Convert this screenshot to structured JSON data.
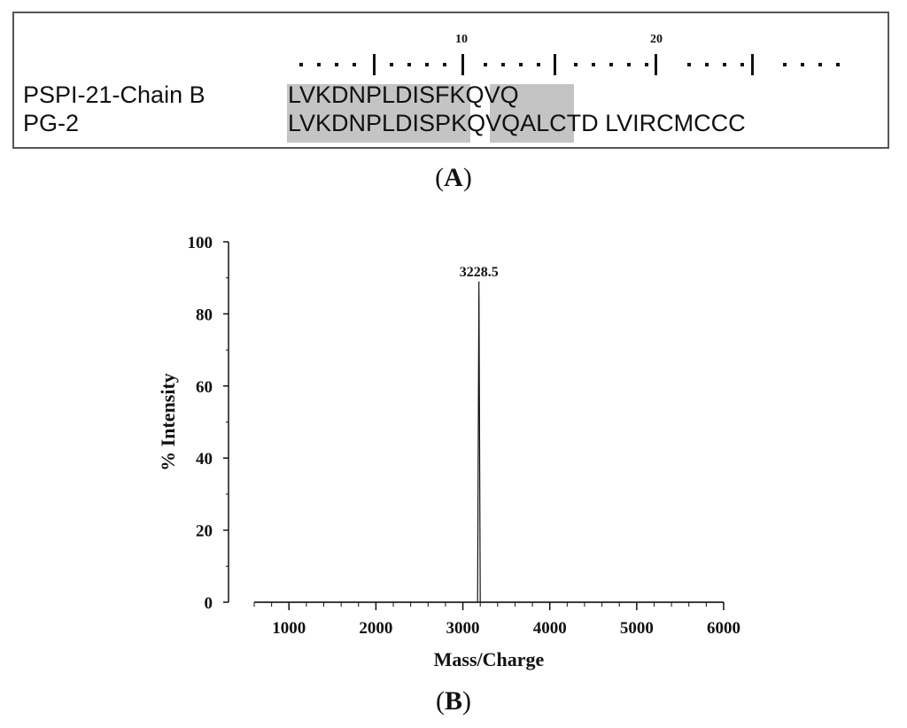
{
  "alignment": {
    "ruler_numbers": [
      "10",
      "20"
    ],
    "rows": [
      {
        "label": "PSPI-21-Chain B",
        "sequence": "LVKDNPLDISFKQVQ"
      },
      {
        "label": "PG-2",
        "sequence": "LVKDNPLDISPKQVQALCTD LVIRCMCCC"
      }
    ],
    "highlight_color": "#c4c4c4"
  },
  "panel_labels": {
    "a": "A",
    "b": "B"
  },
  "chart_data": {
    "type": "line",
    "xlabel": "Mass/Charge",
    "ylabel": "% Intensity",
    "xlim": [
      600,
      6000
    ],
    "ylim": [
      0,
      100
    ],
    "x_ticks": [
      1000,
      2000,
      3000,
      4000,
      5000,
      6000
    ],
    "y_ticks": [
      0,
      20,
      40,
      60,
      80,
      100
    ],
    "grid": false,
    "series": [
      {
        "x": [
          600,
          3170,
          3185,
          3200,
          6000
        ],
        "values": [
          0,
          0,
          89,
          0,
          0
        ]
      }
    ],
    "annotations": [
      {
        "text": "3228.5",
        "x": 3185,
        "y": 89
      }
    ],
    "line_color": "#111111"
  }
}
